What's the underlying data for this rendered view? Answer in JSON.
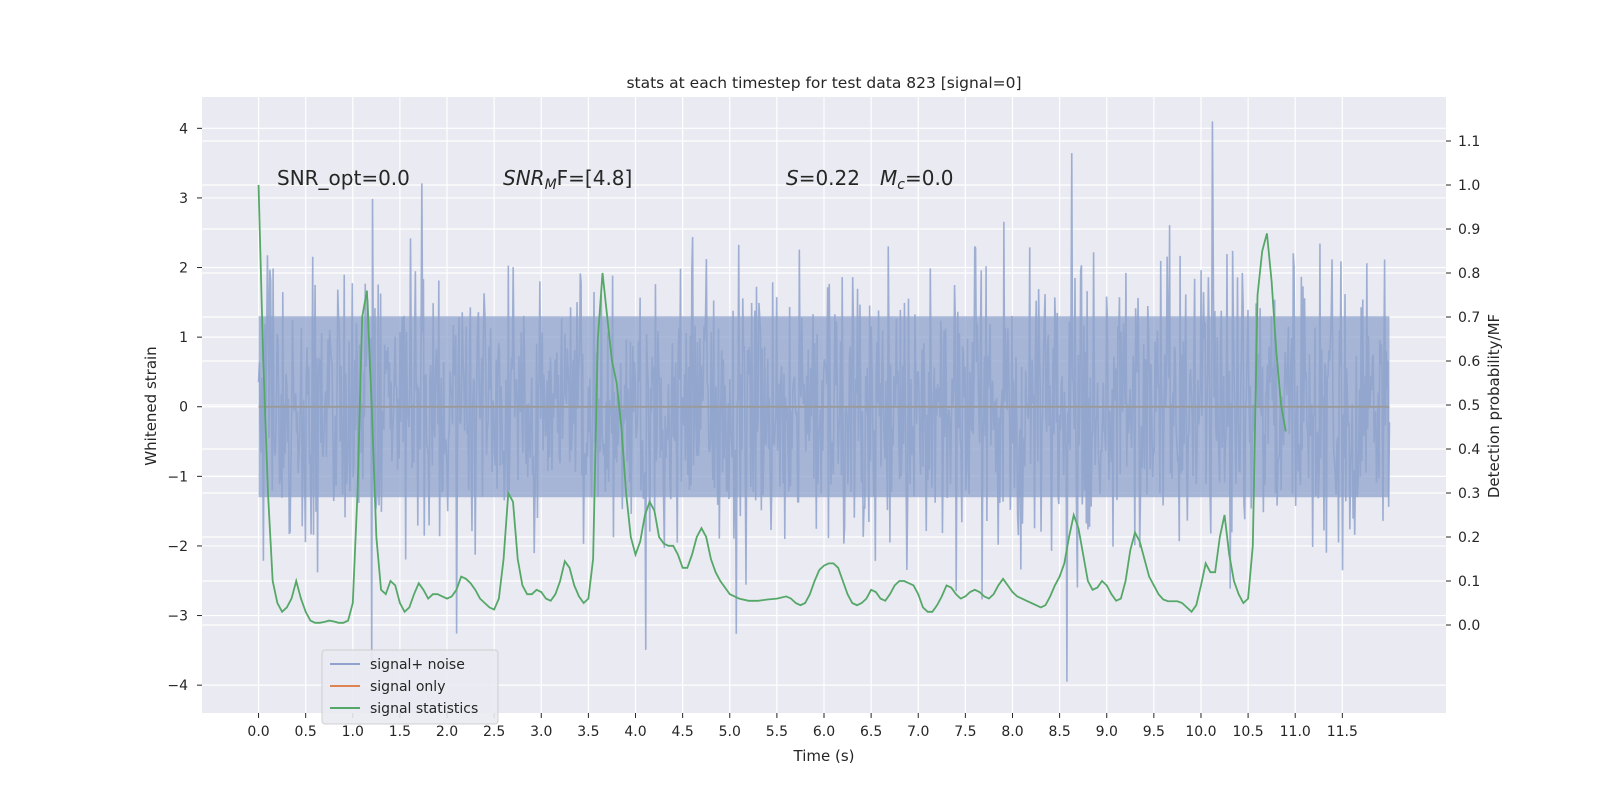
{
  "chart_data": {
    "type": "line",
    "title": "stats at each timestep for test data 823 [signal=0]",
    "xlabel": "Time (s)",
    "ylabel_left": "Whitened strain",
    "ylabel_right": "Detection probability/MF",
    "xlim": [
      -0.6,
      12.6
    ],
    "ylim_left": [
      -4.4,
      4.45
    ],
    "ylim_right": [
      -0.2,
      1.2
    ],
    "x_ticks": [
      "0.0",
      "0.5",
      "1.0",
      "1.5",
      "2.0",
      "2.5",
      "3.0",
      "3.5",
      "4.0",
      "4.5",
      "5.0",
      "5.5",
      "6.0",
      "6.5",
      "7.0",
      "7.5",
      "8.0",
      "8.5",
      "9.0",
      "9.5",
      "10.0",
      "10.5",
      "11.0",
      "11.5"
    ],
    "y_ticks_left": [
      "4",
      "3",
      "2",
      "1",
      "0",
      "−1",
      "−2",
      "−3",
      "−4"
    ],
    "y_ticks_right": [
      "1.1",
      "1.0",
      "0.9",
      "0.8",
      "0.7",
      "0.6",
      "0.5",
      "0.4",
      "0.3",
      "0.2",
      "0.1",
      "0.0"
    ],
    "grid": true,
    "legend_position": "lower-left",
    "annotations": {
      "snr_opt": "SNR_opt=0.0",
      "snr_mf_name": "SNR",
      "snr_mf_sub": "M",
      "snr_mf_rest": "F=[4.8]",
      "s_name": "S",
      "s_rest": "=0.22",
      "mc_name": "M",
      "mc_sub": "c",
      "mc_rest": "=0.0"
    },
    "series": [
      {
        "name": "signal+ noise",
        "color": "#8fa3cc",
        "description_axis": "left",
        "x_range": [
          0.0,
          12.0
        ],
        "typical_band": [
          -1.3,
          1.3
        ],
        "max": 4.1,
        "min": -3.95
      },
      {
        "name": "signal only",
        "color": "#dd8452",
        "description_axis": "left",
        "constant": 0.0
      },
      {
        "name": "signal statistics",
        "color": "#55a868",
        "description_axis": "right",
        "points": [
          [
            0.0,
            1.0
          ],
          [
            0.05,
            0.6
          ],
          [
            0.1,
            0.3
          ],
          [
            0.15,
            0.1
          ],
          [
            0.2,
            0.05
          ],
          [
            0.25,
            0.03
          ],
          [
            0.3,
            0.04
          ],
          [
            0.35,
            0.06
          ],
          [
            0.4,
            0.1
          ],
          [
            0.45,
            0.06
          ],
          [
            0.5,
            0.03
          ],
          [
            0.55,
            0.01
          ],
          [
            0.6,
            0.005
          ],
          [
            0.65,
            0.005
          ],
          [
            0.7,
            0.007
          ],
          [
            0.75,
            0.01
          ],
          [
            0.8,
            0.008
          ],
          [
            0.85,
            0.005
          ],
          [
            0.9,
            0.005
          ],
          [
            0.95,
            0.01
          ],
          [
            1.0,
            0.05
          ],
          [
            1.05,
            0.3
          ],
          [
            1.1,
            0.7
          ],
          [
            1.15,
            0.76
          ],
          [
            1.2,
            0.5
          ],
          [
            1.25,
            0.2
          ],
          [
            1.3,
            0.08
          ],
          [
            1.35,
            0.07
          ],
          [
            1.4,
            0.1
          ],
          [
            1.45,
            0.09
          ],
          [
            1.5,
            0.05
          ],
          [
            1.55,
            0.03
          ],
          [
            1.6,
            0.04
          ],
          [
            1.65,
            0.07
          ],
          [
            1.7,
            0.095
          ],
          [
            1.75,
            0.08
          ],
          [
            1.8,
            0.06
          ],
          [
            1.85,
            0.07
          ],
          [
            1.9,
            0.07
          ],
          [
            1.95,
            0.065
          ],
          [
            2.0,
            0.06
          ],
          [
            2.05,
            0.065
          ],
          [
            2.1,
            0.08
          ],
          [
            2.15,
            0.11
          ],
          [
            2.2,
            0.105
          ],
          [
            2.25,
            0.095
          ],
          [
            2.3,
            0.08
          ],
          [
            2.35,
            0.06
          ],
          [
            2.4,
            0.05
          ],
          [
            2.45,
            0.04
          ],
          [
            2.5,
            0.035
          ],
          [
            2.55,
            0.06
          ],
          [
            2.6,
            0.15
          ],
          [
            2.65,
            0.3
          ],
          [
            2.7,
            0.28
          ],
          [
            2.75,
            0.15
          ],
          [
            2.8,
            0.09
          ],
          [
            2.85,
            0.07
          ],
          [
            2.9,
            0.07
          ],
          [
            2.95,
            0.08
          ],
          [
            3.0,
            0.075
          ],
          [
            3.05,
            0.06
          ],
          [
            3.1,
            0.055
          ],
          [
            3.15,
            0.07
          ],
          [
            3.2,
            0.1
          ],
          [
            3.25,
            0.145
          ],
          [
            3.3,
            0.13
          ],
          [
            3.35,
            0.09
          ],
          [
            3.4,
            0.065
          ],
          [
            3.45,
            0.05
          ],
          [
            3.5,
            0.06
          ],
          [
            3.55,
            0.15
          ],
          [
            3.6,
            0.65
          ],
          [
            3.65,
            0.8
          ],
          [
            3.7,
            0.7
          ],
          [
            3.75,
            0.6
          ],
          [
            3.8,
            0.55
          ],
          [
            3.85,
            0.45
          ],
          [
            3.9,
            0.3
          ],
          [
            3.95,
            0.2
          ],
          [
            4.0,
            0.16
          ],
          [
            4.05,
            0.19
          ],
          [
            4.1,
            0.25
          ],
          [
            4.15,
            0.28
          ],
          [
            4.2,
            0.26
          ],
          [
            4.25,
            0.2
          ],
          [
            4.3,
            0.185
          ],
          [
            4.35,
            0.18
          ],
          [
            4.4,
            0.18
          ],
          [
            4.45,
            0.16
          ],
          [
            4.5,
            0.13
          ],
          [
            4.55,
            0.13
          ],
          [
            4.6,
            0.16
          ],
          [
            4.65,
            0.2
          ],
          [
            4.7,
            0.22
          ],
          [
            4.75,
            0.2
          ],
          [
            4.8,
            0.15
          ],
          [
            4.85,
            0.12
          ],
          [
            4.9,
            0.1
          ],
          [
            4.95,
            0.085
          ],
          [
            5.0,
            0.07
          ],
          [
            5.1,
            0.06
          ],
          [
            5.2,
            0.055
          ],
          [
            5.3,
            0.055
          ],
          [
            5.4,
            0.058
          ],
          [
            5.5,
            0.06
          ],
          [
            5.6,
            0.065
          ],
          [
            5.65,
            0.06
          ],
          [
            5.7,
            0.05
          ],
          [
            5.75,
            0.045
          ],
          [
            5.8,
            0.05
          ],
          [
            5.85,
            0.07
          ],
          [
            5.9,
            0.1
          ],
          [
            5.95,
            0.125
          ],
          [
            6.0,
            0.135
          ],
          [
            6.05,
            0.14
          ],
          [
            6.1,
            0.14
          ],
          [
            6.15,
            0.13
          ],
          [
            6.2,
            0.1
          ],
          [
            6.25,
            0.07
          ],
          [
            6.3,
            0.05
          ],
          [
            6.35,
            0.045
          ],
          [
            6.4,
            0.05
          ],
          [
            6.45,
            0.06
          ],
          [
            6.5,
            0.08
          ],
          [
            6.55,
            0.075
          ],
          [
            6.6,
            0.06
          ],
          [
            6.65,
            0.055
          ],
          [
            6.7,
            0.07
          ],
          [
            6.75,
            0.09
          ],
          [
            6.8,
            0.1
          ],
          [
            6.85,
            0.1
          ],
          [
            6.9,
            0.095
          ],
          [
            6.95,
            0.09
          ],
          [
            7.0,
            0.07
          ],
          [
            7.05,
            0.04
          ],
          [
            7.1,
            0.03
          ],
          [
            7.15,
            0.03
          ],
          [
            7.2,
            0.045
          ],
          [
            7.25,
            0.065
          ],
          [
            7.3,
            0.09
          ],
          [
            7.35,
            0.085
          ],
          [
            7.4,
            0.07
          ],
          [
            7.45,
            0.06
          ],
          [
            7.5,
            0.065
          ],
          [
            7.55,
            0.075
          ],
          [
            7.6,
            0.08
          ],
          [
            7.65,
            0.075
          ],
          [
            7.7,
            0.065
          ],
          [
            7.75,
            0.06
          ],
          [
            7.8,
            0.07
          ],
          [
            7.85,
            0.09
          ],
          [
            7.9,
            0.105
          ],
          [
            7.95,
            0.09
          ],
          [
            8.0,
            0.075
          ],
          [
            8.05,
            0.065
          ],
          [
            8.1,
            0.06
          ],
          [
            8.15,
            0.055
          ],
          [
            8.2,
            0.05
          ],
          [
            8.25,
            0.045
          ],
          [
            8.3,
            0.04
          ],
          [
            8.35,
            0.045
          ],
          [
            8.4,
            0.065
          ],
          [
            8.45,
            0.09
          ],
          [
            8.5,
            0.11
          ],
          [
            8.55,
            0.14
          ],
          [
            8.6,
            0.2
          ],
          [
            8.65,
            0.25
          ],
          [
            8.7,
            0.22
          ],
          [
            8.75,
            0.16
          ],
          [
            8.8,
            0.1
          ],
          [
            8.85,
            0.08
          ],
          [
            8.9,
            0.085
          ],
          [
            8.95,
            0.1
          ],
          [
            9.0,
            0.09
          ],
          [
            9.05,
            0.07
          ],
          [
            9.1,
            0.055
          ],
          [
            9.15,
            0.06
          ],
          [
            9.2,
            0.1
          ],
          [
            9.25,
            0.17
          ],
          [
            9.3,
            0.21
          ],
          [
            9.35,
            0.19
          ],
          [
            9.4,
            0.15
          ],
          [
            9.45,
            0.11
          ],
          [
            9.5,
            0.09
          ],
          [
            9.55,
            0.07
          ],
          [
            9.6,
            0.058
          ],
          [
            9.65,
            0.054
          ],
          [
            9.7,
            0.054
          ],
          [
            9.75,
            0.054
          ],
          [
            9.8,
            0.05
          ],
          [
            9.85,
            0.04
          ],
          [
            9.9,
            0.03
          ],
          [
            9.95,
            0.045
          ],
          [
            10.0,
            0.09
          ],
          [
            10.05,
            0.14
          ],
          [
            10.1,
            0.12
          ],
          [
            10.15,
            0.12
          ],
          [
            10.2,
            0.2
          ],
          [
            10.25,
            0.25
          ],
          [
            10.3,
            0.16
          ],
          [
            10.35,
            0.1
          ],
          [
            10.4,
            0.07
          ],
          [
            10.45,
            0.05
          ],
          [
            10.5,
            0.06
          ],
          [
            10.55,
            0.18
          ],
          [
            10.6,
            0.75
          ],
          [
            10.65,
            0.85
          ],
          [
            10.7,
            0.89
          ],
          [
            10.75,
            0.78
          ],
          [
            10.8,
            0.62
          ],
          [
            10.85,
            0.5
          ],
          [
            10.9,
            0.44
          ]
        ]
      }
    ]
  }
}
